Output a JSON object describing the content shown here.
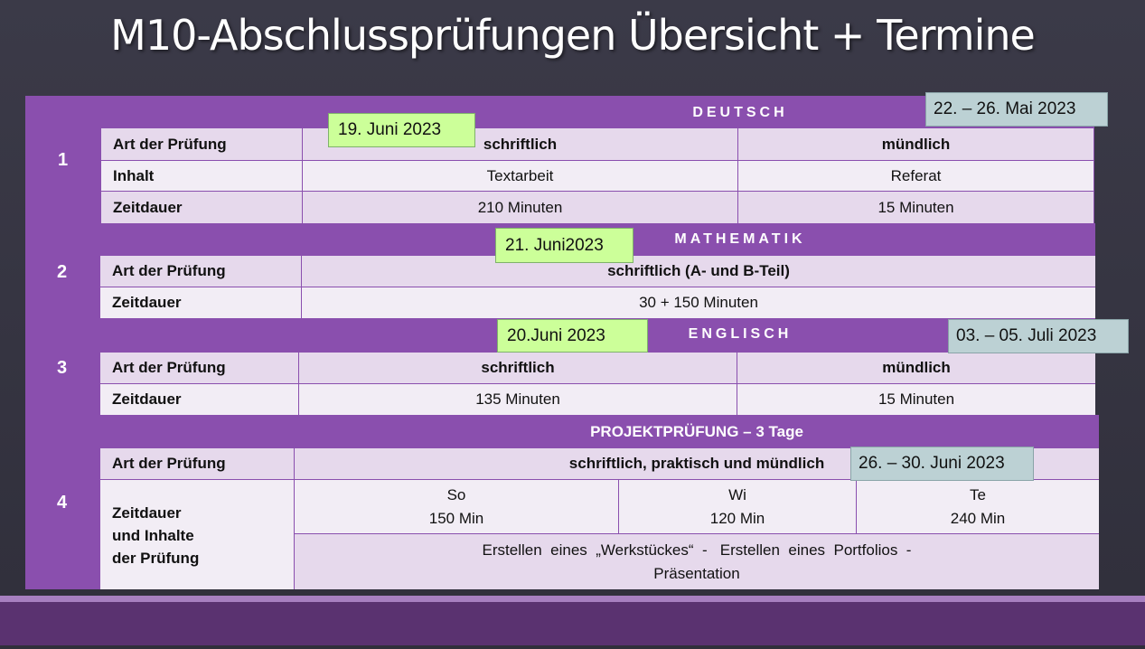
{
  "title": "M10-Abschlussprüfungen Übersicht + Termine",
  "colors": {
    "purple": "#8a4fae",
    "cell": "#e6d9ec",
    "cell_light": "#f2edf5",
    "green_note": "#ccff99",
    "blue_note": "#bcd1d4",
    "background": "#3b3a48"
  },
  "deutsch": {
    "number": "1",
    "heading": "DEUTSCH",
    "rows": [
      {
        "label": "Art der Prüfung",
        "a": "schriftlich",
        "b": "mündlich"
      },
      {
        "label": "Inhalt",
        "a": "Textarbeit",
        "b": "Referat"
      },
      {
        "label": "Zeitdauer",
        "a": "210 Minuten",
        "b": "15 Minuten"
      }
    ],
    "date_written": "19. Juni 2023",
    "date_oral": "22. – 26. Mai 2023"
  },
  "mathematik": {
    "number": "2",
    "heading": "MATHEMATIK",
    "rows": [
      {
        "label": "Art der Prüfung",
        "value": "schriftlich  (A- und B-Teil)"
      },
      {
        "label": "Zeitdauer",
        "value": "30 + 150 Minuten"
      }
    ],
    "date_written": "21. Juni2023"
  },
  "englisch": {
    "number": "3",
    "heading": "ENGLISCH",
    "rows": [
      {
        "label": "Art der Prüfung",
        "a": "schriftlich",
        "b": "mündlich"
      },
      {
        "label": "Zeitdauer",
        "a": "135 Minuten",
        "b": "15 Minuten"
      }
    ],
    "date_written": "20.Juni 2023",
    "date_oral": "03. – 05. Juli 2023"
  },
  "projekt": {
    "number": "4",
    "heading": "PROJEKTPRÜFUNG  – 3 Tage",
    "art_label": "Art der Prüfung",
    "art_value": "schriftlich,  praktisch  und  mündlich",
    "zeit_label_1": "Zeitdauer",
    "zeit_label_2": "und Inhalte",
    "zeit_label_3": "der Prüfung",
    "subjects": [
      {
        "name": "So",
        "duration": "150 Min"
      },
      {
        "name": "Wi",
        "duration": "120 Min"
      },
      {
        "name": "Te",
        "duration": "240 Min"
      }
    ],
    "content_line1": "Erstellen  eines  „Werkstückes“  -   Erstellen  eines  Portfolios  -",
    "content_line2": "Präsentation",
    "date": "26. – 30. Juni 2023"
  }
}
